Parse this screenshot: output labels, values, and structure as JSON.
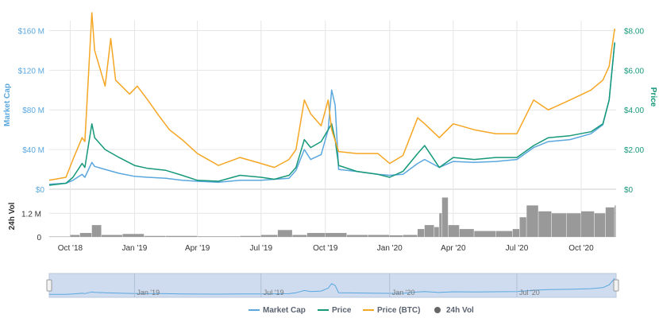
{
  "colors": {
    "market_cap": "#5aa7de",
    "price": "#16987a",
    "price_btc": "#f5a623",
    "volume": "#999999",
    "grid": "#e6e6e6",
    "navigator_fill": "#cfdcf0",
    "navigator_line": "#5aa7de"
  },
  "chart_data": {
    "type": "line",
    "x_type": "date",
    "x_range": [
      "2018-09-01",
      "2020-11-20"
    ],
    "x_ticks": [
      "2018-10-01",
      "2019-01-01",
      "2019-04-01",
      "2019-07-01",
      "2019-10-01",
      "2020-01-01",
      "2020-04-01",
      "2020-07-01",
      "2020-10-01"
    ],
    "x_tick_labels": [
      "Oct '18",
      "Jan '19",
      "Apr '19",
      "Jul '19",
      "Oct '19",
      "Jan '20",
      "Apr '20",
      "Jul '20",
      "Oct '20"
    ],
    "navigator_tick_labels": [
      "Jan '19",
      "Jul '19",
      "Jan '20",
      "Jul '20"
    ],
    "navigator_ticks": [
      "2019-01-01",
      "2019-07-01",
      "2020-01-01",
      "2020-07-01"
    ],
    "y_left": {
      "label": "Market Cap",
      "ticks": [
        0,
        40,
        80,
        120,
        160
      ],
      "tick_labels": [
        "$0",
        "$40 M",
        "$80 M",
        "$120 M",
        "$160 M"
      ],
      "range": [
        0,
        170
      ],
      "unit": "M USD"
    },
    "y_right": {
      "label": "Price",
      "ticks": [
        0,
        2,
        4,
        6,
        8
      ],
      "tick_labels": [
        "$0",
        "$2.00",
        "$4.00",
        "$6.00",
        "$8.00"
      ],
      "range": [
        0,
        8.5
      ],
      "unit": "USD"
    },
    "y_volume": {
      "label": "24h Vol",
      "ticks": [
        0,
        1.2
      ],
      "tick_labels": [
        "0",
        "1.2 M"
      ],
      "range": [
        0,
        2.1
      ],
      "unit": "M"
    },
    "legend": [
      "Market Cap",
      "Price",
      "Price (BTC)",
      "24h Vol"
    ],
    "series": [
      {
        "name": "Market Cap",
        "axis": "left",
        "points": [
          [
            "2018-09-01",
            5
          ],
          [
            "2018-09-25",
            6
          ],
          [
            "2018-10-05",
            9
          ],
          [
            "2018-10-18",
            15
          ],
          [
            "2018-10-22",
            12
          ],
          [
            "2018-11-01",
            27
          ],
          [
            "2018-11-05",
            23
          ],
          [
            "2018-11-20",
            20
          ],
          [
            "2018-12-10",
            16
          ],
          [
            "2019-01-01",
            13
          ],
          [
            "2019-01-20",
            12
          ],
          [
            "2019-02-15",
            11
          ],
          [
            "2019-03-10",
            9
          ],
          [
            "2019-04-01",
            8
          ],
          [
            "2019-05-01",
            7
          ],
          [
            "2019-06-01",
            9
          ],
          [
            "2019-07-01",
            9
          ],
          [
            "2019-07-20",
            10
          ],
          [
            "2019-08-10",
            11
          ],
          [
            "2019-08-20",
            19
          ],
          [
            "2019-09-01",
            40
          ],
          [
            "2019-09-10",
            30
          ],
          [
            "2019-09-25",
            35
          ],
          [
            "2019-10-05",
            60
          ],
          [
            "2019-10-10",
            100
          ],
          [
            "2019-10-15",
            85
          ],
          [
            "2019-10-20",
            20
          ],
          [
            "2019-11-15",
            18
          ],
          [
            "2019-12-15",
            15
          ],
          [
            "2020-01-01",
            14
          ],
          [
            "2020-01-20",
            15
          ],
          [
            "2020-02-10",
            26
          ],
          [
            "2020-02-20",
            30
          ],
          [
            "2020-03-12",
            22
          ],
          [
            "2020-04-01",
            28
          ],
          [
            "2020-05-01",
            27
          ],
          [
            "2020-06-01",
            28
          ],
          [
            "2020-07-01",
            30
          ],
          [
            "2020-07-25",
            42
          ],
          [
            "2020-08-15",
            48
          ],
          [
            "2020-09-15",
            50
          ],
          [
            "2020-10-15",
            56
          ],
          [
            "2020-11-01",
            65
          ],
          [
            "2020-11-10",
            90
          ],
          [
            "2020-11-18",
            148
          ]
        ]
      },
      {
        "name": "Price",
        "axis": "right",
        "points": [
          [
            "2018-09-01",
            0.2
          ],
          [
            "2018-09-25",
            0.3
          ],
          [
            "2018-10-05",
            0.6
          ],
          [
            "2018-10-18",
            1.3
          ],
          [
            "2018-10-22",
            1.1
          ],
          [
            "2018-11-01",
            3.3
          ],
          [
            "2018-11-05",
            2.6
          ],
          [
            "2018-11-20",
            2.0
          ],
          [
            "2018-12-10",
            1.6
          ],
          [
            "2019-01-01",
            1.2
          ],
          [
            "2019-01-20",
            1.05
          ],
          [
            "2019-02-15",
            0.95
          ],
          [
            "2019-03-10",
            0.7
          ],
          [
            "2019-04-01",
            0.45
          ],
          [
            "2019-05-01",
            0.4
          ],
          [
            "2019-06-01",
            0.7
          ],
          [
            "2019-07-01",
            0.6
          ],
          [
            "2019-07-20",
            0.5
          ],
          [
            "2019-08-10",
            0.7
          ],
          [
            "2019-08-20",
            1.1
          ],
          [
            "2019-09-01",
            2.5
          ],
          [
            "2019-09-10",
            2.1
          ],
          [
            "2019-09-25",
            2.4
          ],
          [
            "2019-10-05",
            3.0
          ],
          [
            "2019-10-10",
            3.3
          ],
          [
            "2019-10-15",
            2.5
          ],
          [
            "2019-10-20",
            1.2
          ],
          [
            "2019-11-15",
            0.9
          ],
          [
            "2019-12-15",
            0.75
          ],
          [
            "2020-01-01",
            0.6
          ],
          [
            "2020-01-20",
            0.9
          ],
          [
            "2020-02-10",
            1.8
          ],
          [
            "2020-02-20",
            2.2
          ],
          [
            "2020-03-12",
            1.1
          ],
          [
            "2020-04-01",
            1.6
          ],
          [
            "2020-05-01",
            1.5
          ],
          [
            "2020-06-01",
            1.6
          ],
          [
            "2020-07-01",
            1.6
          ],
          [
            "2020-07-25",
            2.2
          ],
          [
            "2020-08-15",
            2.6
          ],
          [
            "2020-09-15",
            2.7
          ],
          [
            "2020-10-15",
            2.9
          ],
          [
            "2020-11-01",
            3.3
          ],
          [
            "2020-11-10",
            4.5
          ],
          [
            "2020-11-18",
            7.4
          ]
        ]
      },
      {
        "name": "Price (BTC)",
        "axis": "right",
        "points": [
          [
            "2018-09-01",
            0.45
          ],
          [
            "2018-09-25",
            0.6
          ],
          [
            "2018-10-05",
            1.5
          ],
          [
            "2018-10-18",
            2.6
          ],
          [
            "2018-10-22",
            2.4
          ],
          [
            "2018-11-01",
            8.9
          ],
          [
            "2018-11-05",
            7.0
          ],
          [
            "2018-11-20",
            5.2
          ],
          [
            "2018-11-28",
            7.6
          ],
          [
            "2018-12-05",
            5.5
          ],
          [
            "2018-12-25",
            4.8
          ],
          [
            "2019-01-05",
            5.2
          ],
          [
            "2019-01-20",
            4.5
          ],
          [
            "2019-02-05",
            3.7
          ],
          [
            "2019-02-20",
            3.0
          ],
          [
            "2019-03-10",
            2.5
          ],
          [
            "2019-04-01",
            1.8
          ],
          [
            "2019-05-01",
            1.2
          ],
          [
            "2019-06-01",
            1.6
          ],
          [
            "2019-07-01",
            1.3
          ],
          [
            "2019-07-20",
            1.1
          ],
          [
            "2019-08-10",
            1.5
          ],
          [
            "2019-08-20",
            2.0
          ],
          [
            "2019-09-01",
            4.5
          ],
          [
            "2019-09-10",
            3.8
          ],
          [
            "2019-09-25",
            3.2
          ],
          [
            "2019-10-05",
            4.5
          ],
          [
            "2019-10-10",
            3.0
          ],
          [
            "2019-10-20",
            1.9
          ],
          [
            "2019-11-15",
            1.8
          ],
          [
            "2019-12-15",
            1.8
          ],
          [
            "2020-01-01",
            1.3
          ],
          [
            "2020-01-20",
            1.7
          ],
          [
            "2020-02-10",
            3.6
          ],
          [
            "2020-02-20",
            3.3
          ],
          [
            "2020-03-12",
            2.6
          ],
          [
            "2020-04-01",
            3.3
          ],
          [
            "2020-05-01",
            3.0
          ],
          [
            "2020-06-01",
            2.8
          ],
          [
            "2020-07-01",
            2.8
          ],
          [
            "2020-07-25",
            4.5
          ],
          [
            "2020-08-15",
            4.0
          ],
          [
            "2020-09-15",
            4.5
          ],
          [
            "2020-10-15",
            5.0
          ],
          [
            "2020-11-01",
            5.5
          ],
          [
            "2020-11-10",
            6.2
          ],
          [
            "2020-11-18",
            8.1
          ]
        ]
      },
      {
        "name": "24h Vol",
        "axis": "volume",
        "style": "bars",
        "points": [
          [
            "2018-09-01",
            0.02
          ],
          [
            "2018-10-01",
            0.1
          ],
          [
            "2018-10-15",
            0.2
          ],
          [
            "2018-11-01",
            0.6
          ],
          [
            "2018-11-15",
            0.1
          ],
          [
            "2018-12-15",
            0.15
          ],
          [
            "2019-01-15",
            0.05
          ],
          [
            "2019-02-15",
            0.05
          ],
          [
            "2019-04-01",
            0.03
          ],
          [
            "2019-06-01",
            0.05
          ],
          [
            "2019-07-01",
            0.1
          ],
          [
            "2019-07-25",
            0.35
          ],
          [
            "2019-08-15",
            0.1
          ],
          [
            "2019-09-05",
            0.2
          ],
          [
            "2019-10-01",
            0.2
          ],
          [
            "2019-11-01",
            0.1
          ],
          [
            "2019-12-01",
            0.1
          ],
          [
            "2020-01-01",
            0.08
          ],
          [
            "2020-01-20",
            0.1
          ],
          [
            "2020-02-10",
            0.4
          ],
          [
            "2020-02-20",
            0.6
          ],
          [
            "2020-03-05",
            0.5
          ],
          [
            "2020-03-12",
            1.2
          ],
          [
            "2020-03-16",
            2.0
          ],
          [
            "2020-03-25",
            0.6
          ],
          [
            "2020-04-10",
            0.4
          ],
          [
            "2020-05-01",
            0.3
          ],
          [
            "2020-06-01",
            0.3
          ],
          [
            "2020-06-25",
            0.4
          ],
          [
            "2020-07-05",
            1.0
          ],
          [
            "2020-07-15",
            1.6
          ],
          [
            "2020-08-01",
            1.3
          ],
          [
            "2020-08-20",
            1.2
          ],
          [
            "2020-09-10",
            1.2
          ],
          [
            "2020-10-01",
            1.3
          ],
          [
            "2020-10-20",
            1.2
          ],
          [
            "2020-11-05",
            1.5
          ],
          [
            "2020-11-18",
            1.6
          ]
        ]
      }
    ]
  }
}
